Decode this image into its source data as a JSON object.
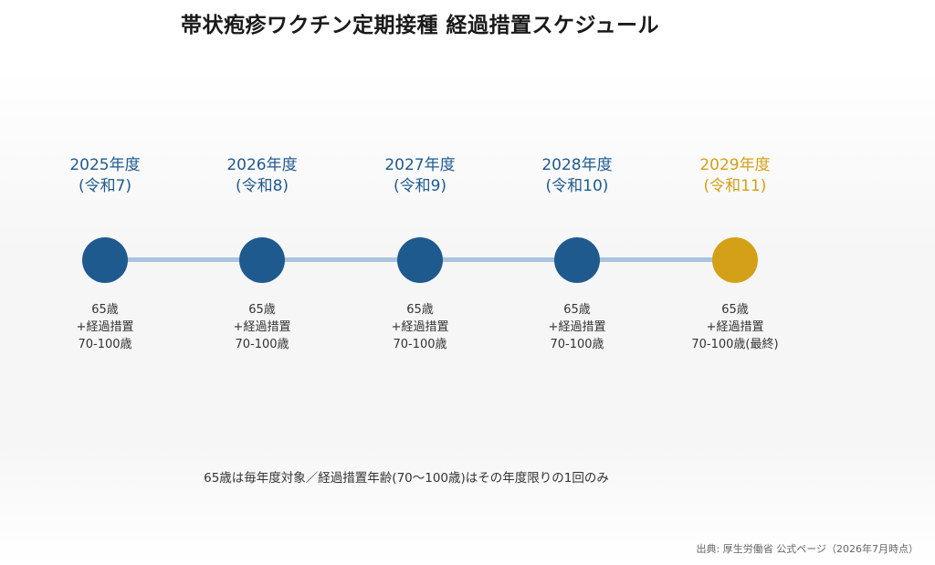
{
  "title": "帯状疱疹ワクチン定期接種 経過措置スケジュール",
  "colors": {
    "primary": "#1f5a8f",
    "final": "#d4a017",
    "line": "#a9c4de"
  },
  "years": [
    {
      "year": "2025年度",
      "reiwa": "(令和7)",
      "age": "65歳",
      "extra": "+経過措置",
      "range": "70-100歳",
      "final": false
    },
    {
      "year": "2026年度",
      "reiwa": "(令和8)",
      "age": "65歳",
      "extra": "+経過措置",
      "range": "70-100歳",
      "final": false
    },
    {
      "year": "2027年度",
      "reiwa": "(令和9)",
      "age": "65歳",
      "extra": "+経過措置",
      "range": "70-100歳",
      "final": false
    },
    {
      "year": "2028年度",
      "reiwa": "(令和10)",
      "age": "65歳",
      "extra": "+経過措置",
      "range": "70-100歳",
      "final": false
    },
    {
      "year": "2029年度",
      "reiwa": "(令和11)",
      "age": "65歳",
      "extra": "+経過措置",
      "range": "70-100歳(最終)",
      "final": true
    }
  ],
  "note": "65歳は毎年度対象／経過措置年齢(70〜100歳)はその年度限りの1回のみ",
  "source": "出典: 厚生労働省 公式ページ（2026年7月時点）"
}
